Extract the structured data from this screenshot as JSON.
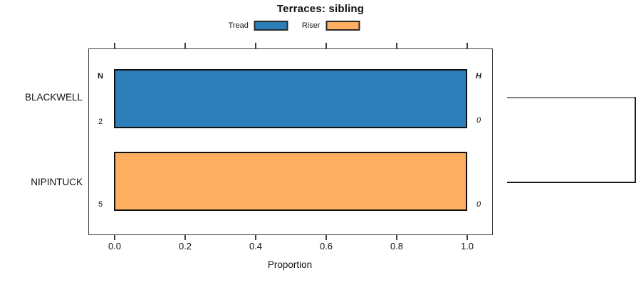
{
  "title": "Terraces: sibling",
  "legend": {
    "items": [
      {
        "label": "Tread",
        "color": "#2C7FB8"
      },
      {
        "label": "Riser",
        "color": "#FDAE61"
      }
    ]
  },
  "axis": {
    "xlabel": "Proportion",
    "ticks": [
      "0.0",
      "0.2",
      "0.4",
      "0.6",
      "0.8",
      "1.0"
    ]
  },
  "headers": {
    "n": "N",
    "h": "H"
  },
  "rows": [
    {
      "label": "BLACKWELL",
      "series": "Tread",
      "proportion": 1.0,
      "color": "#2C7FB8",
      "n": "2",
      "h": "0"
    },
    {
      "label": "NIPINTUCK",
      "series": "Riser",
      "proportion": 1.0,
      "color": "#FDAE61",
      "n": "5",
      "h": "0"
    }
  ],
  "chart_data": {
    "type": "bar",
    "orientation": "horizontal",
    "title": "Terraces: sibling",
    "categories": [
      "BLACKWELL",
      "NIPINTUCK"
    ],
    "series": [
      {
        "name": "Tread",
        "color": "#2C7FB8",
        "values": [
          1.0,
          0
        ]
      },
      {
        "name": "Riser",
        "color": "#FDAE61",
        "values": [
          0,
          1.0
        ]
      }
    ],
    "annotations": {
      "N": [
        2,
        5
      ],
      "H": [
        0,
        0
      ]
    },
    "xlabel": "Proportion",
    "xlim": [
      0.0,
      1.0
    ],
    "x_ticks": [
      0.0,
      0.2,
      0.4,
      0.6,
      0.8,
      1.0
    ],
    "legend_position": "top-center",
    "grid": false,
    "extras": "right-side dendrogram joining the two category rows"
  }
}
